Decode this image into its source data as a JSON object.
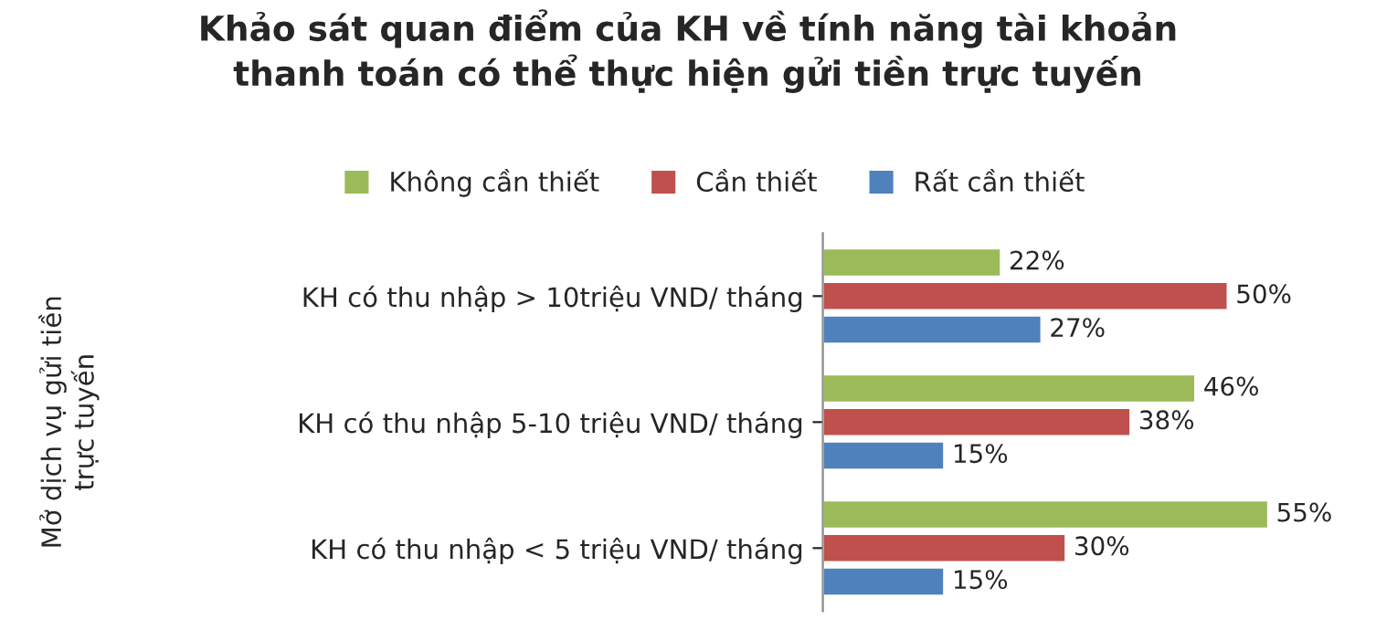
{
  "chart_data": {
    "type": "bar",
    "orientation": "horizontal",
    "title": "Khảo sát quan điểm của KH về tính năng tài khoản\nthanh toán có thể thực hiện gửi tiền trực tuyến",
    "annotations": [
      "Mở dịch vụ gửi tiền\ntrực tuyến"
    ],
    "categories": [
      "KH có thu nhập > 10triệu VND/ tháng",
      "KH có thu nhập 5-10 triệu VND/ tháng",
      "KH có thu nhập < 5 triệu VND/ tháng"
    ],
    "series": [
      {
        "name": "Không cần thiết",
        "color": "#9bbb59",
        "values": [
          22,
          46,
          55
        ],
        "value_labels": [
          "22%",
          "46%",
          "55%"
        ]
      },
      {
        "name": "Cần thiết",
        "color": "#c0504d",
        "values": [
          50,
          38,
          30
        ],
        "value_labels": [
          "50%",
          "38%",
          "30%"
        ]
      },
      {
        "name": "Rất cần thiết",
        "color": "#4f81bd",
        "values": [
          27,
          15,
          15
        ],
        "value_labels": [
          "27%",
          "15%",
          "15%"
        ]
      }
    ],
    "tick_labels": "y",
    "legend": "top",
    "grid": false
  }
}
